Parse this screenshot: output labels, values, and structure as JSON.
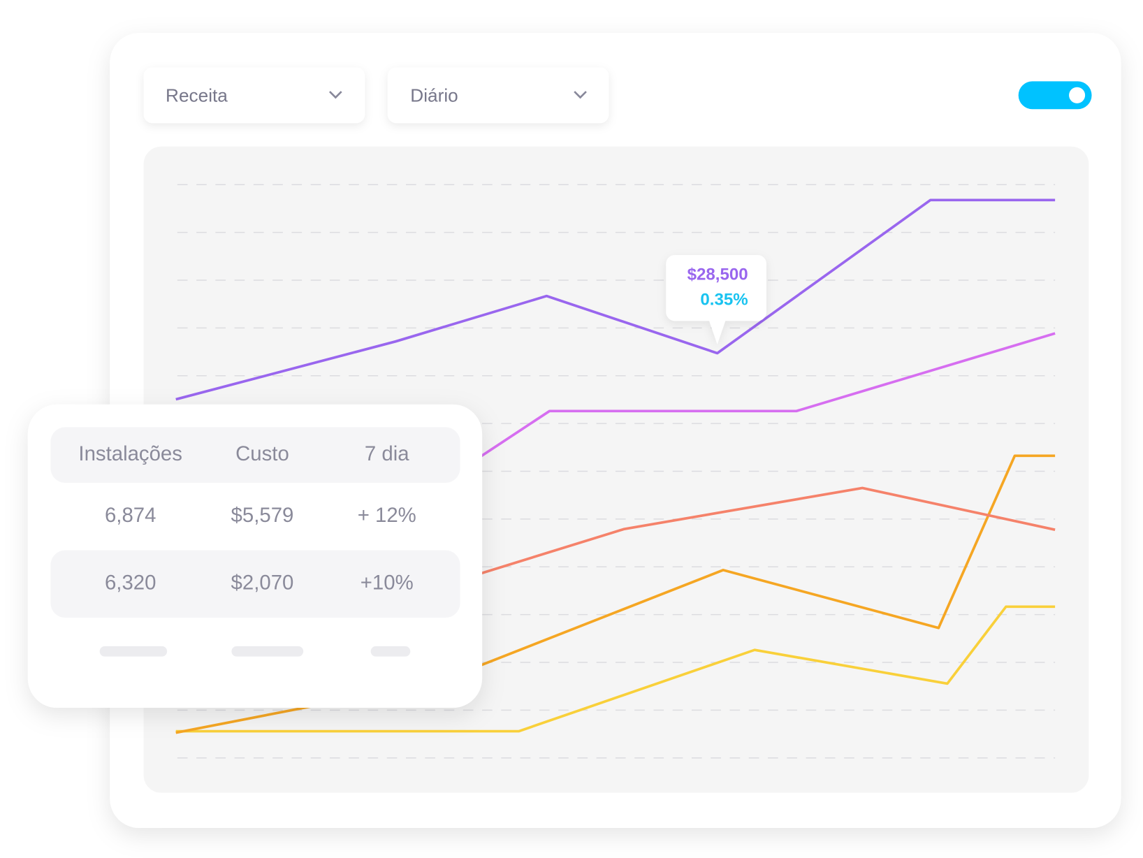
{
  "dropdowns": [
    "Receita",
    "Diário"
  ],
  "tooltip": {
    "value": "$28,500",
    "change": "0.35%"
  },
  "table": {
    "header": [
      "Instalações",
      "Custo",
      "7 dia"
    ],
    "rows": [
      [
        "6,874",
        "$5,579",
        "+ 12%"
      ],
      [
        "6,320",
        "$2,070",
        "+10%"
      ]
    ]
  }
}
